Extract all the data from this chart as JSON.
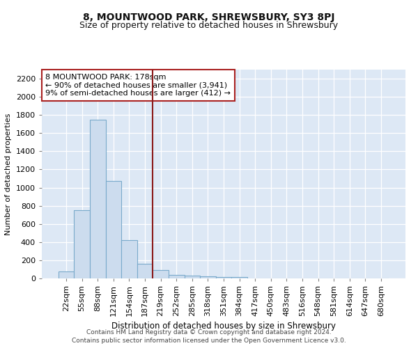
{
  "title": "8, MOUNTWOOD PARK, SHREWSBURY, SY3 8PJ",
  "subtitle": "Size of property relative to detached houses in Shrewsbury",
  "xlabel": "Distribution of detached houses by size in Shrewsbury",
  "ylabel": "Number of detached properties",
  "footnote1": "Contains HM Land Registry data © Crown copyright and database right 2024.",
  "footnote2": "Contains public sector information licensed under the Open Government Licence v3.0.",
  "bar_labels": [
    "22sqm",
    "55sqm",
    "88sqm",
    "121sqm",
    "154sqm",
    "187sqm",
    "219sqm",
    "252sqm",
    "285sqm",
    "318sqm",
    "351sqm",
    "384sqm",
    "417sqm",
    "450sqm",
    "483sqm",
    "516sqm",
    "548sqm",
    "581sqm",
    "614sqm",
    "647sqm",
    "680sqm"
  ],
  "bar_values": [
    75,
    750,
    1750,
    1075,
    425,
    160,
    90,
    40,
    30,
    25,
    15,
    15,
    0,
    0,
    0,
    0,
    0,
    0,
    0,
    0,
    0
  ],
  "bar_color": "#ccdcee",
  "bar_edgecolor": "#7aaacb",
  "vline_x": 5.5,
  "vline_color": "#8b1a1a",
  "annotation_line1": "8 MOUNTWOOD PARK: 178sqm",
  "annotation_line2": "← 90% of detached houses are smaller (3,941)",
  "annotation_line3": "9% of semi-detached houses are larger (412) →",
  "annotation_box_facecolor": "#ffffff",
  "annotation_box_edgecolor": "#aa2222",
  "ylim": [
    0,
    2300
  ],
  "yticks": [
    0,
    200,
    400,
    600,
    800,
    1000,
    1200,
    1400,
    1600,
    1800,
    2000,
    2200
  ],
  "bg_color": "#dde8f5",
  "title_fontsize": 10,
  "subtitle_fontsize": 9,
  "ylabel_fontsize": 8,
  "xlabel_fontsize": 8.5,
  "tick_fontsize": 8,
  "annotation_fontsize": 8,
  "footnote_fontsize": 6.5
}
